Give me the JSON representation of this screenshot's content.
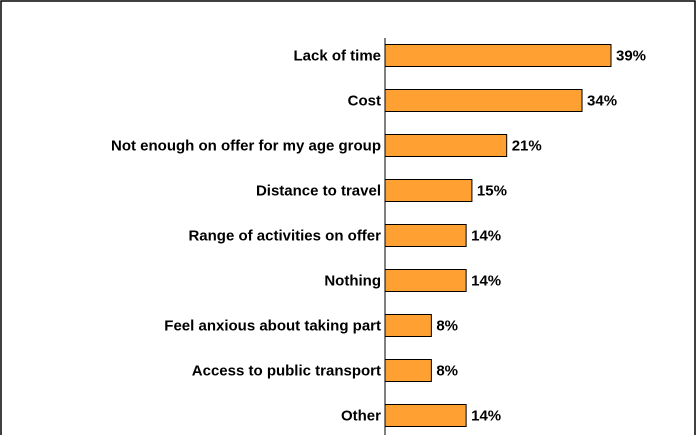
{
  "chart_data": {
    "type": "bar",
    "orientation": "horizontal",
    "categories": [
      "Lack of time",
      "Cost",
      "Not enough on offer for my age group",
      "Distance to travel",
      "Range of activities on offer",
      "Nothing",
      "Feel anxious about taking part",
      "Access to public transport",
      "Other"
    ],
    "values": [
      39,
      34,
      21,
      15,
      14,
      14,
      8,
      8,
      14
    ],
    "value_labels": [
      "39%",
      "34%",
      "21%",
      "15%",
      "14%",
      "14%",
      "8%",
      "8%",
      "14%"
    ],
    "unit": "%",
    "xlim": [
      0,
      40
    ],
    "grid": false,
    "legend": "none",
    "bar_color": "#FFA033",
    "bar_outline_color": "#000000",
    "axis_color": "#000000"
  }
}
